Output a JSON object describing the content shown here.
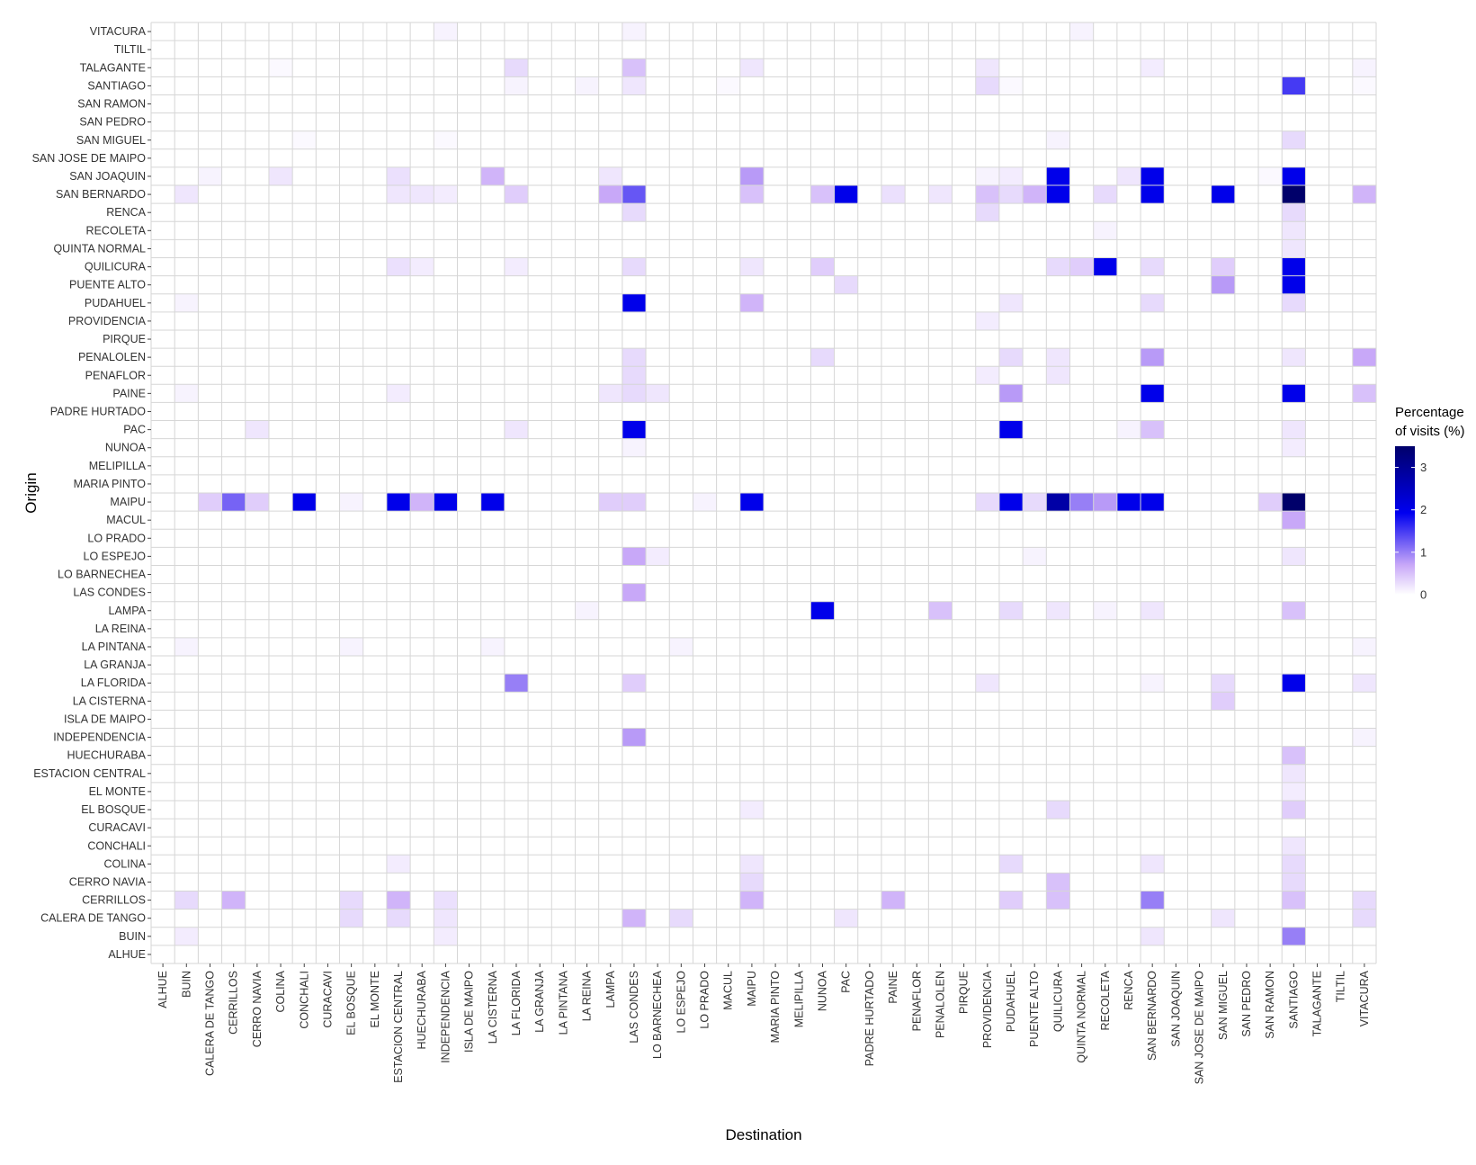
{
  "chart_data": {
    "type": "heatmap",
    "xlabel": "Destination",
    "ylabel": "Origin",
    "x_categories": [
      "ALHUE",
      "BUIN",
      "CALERA DE TANGO",
      "CERRILLOS",
      "CERRO NAVIA",
      "COLINA",
      "CONCHALI",
      "CURACAVI",
      "EL BOSQUE",
      "EL MONTE",
      "ESTACION CENTRAL",
      "HUECHURABA",
      "INDEPENDENCIA",
      "ISLA DE MAIPO",
      "LA CISTERNA",
      "LA FLORIDA",
      "LA GRANJA",
      "LA PINTANA",
      "LA REINA",
      "LAMPA",
      "LAS CONDES",
      "LO BARNECHEA",
      "LO ESPEJO",
      "LO PRADO",
      "MACUL",
      "MAIPU",
      "MARIA PINTO",
      "MELIPILLA",
      "NUNOA",
      "PAC",
      "PADRE HURTADO",
      "PAINE",
      "PENAFLOR",
      "PENALOLEN",
      "PIRQUE",
      "PROVIDENCIA",
      "PUDAHUEL",
      "PUENTE ALTO",
      "QUILICURA",
      "QUINTA NORMAL",
      "RECOLETA",
      "RENCA",
      "SAN BERNARDO",
      "SAN JOAQUIN",
      "SAN JOSE DE MAIPO",
      "SAN MIGUEL",
      "SAN PEDRO",
      "SAN RAMON",
      "SANTIAGO",
      "TALAGANTE",
      "TILTIL",
      "VITACURA"
    ],
    "y_categories": [
      "ALHUE",
      "BUIN",
      "CALERA DE TANGO",
      "CERRILLOS",
      "CERRO NAVIA",
      "COLINA",
      "CONCHALI",
      "CURACAVI",
      "EL BOSQUE",
      "EL MONTE",
      "ESTACION CENTRAL",
      "HUECHURABA",
      "INDEPENDENCIA",
      "ISLA DE MAIPO",
      "LA CISTERNA",
      "LA FLORIDA",
      "LA GRANJA",
      "LA PINTANA",
      "LA REINA",
      "LAMPA",
      "LAS CONDES",
      "LO BARNECHEA",
      "LO ESPEJO",
      "LO PRADO",
      "MACUL",
      "MAIPU",
      "MARIA PINTO",
      "MELIPILLA",
      "NUNOA",
      "PAC",
      "PADRE HURTADO",
      "PAINE",
      "PENAFLOR",
      "PENALOLEN",
      "PIRQUE",
      "PROVIDENCIA",
      "PUDAHUEL",
      "PUENTE ALTO",
      "QUILICURA",
      "QUINTA NORMAL",
      "RECOLETA",
      "RENCA",
      "SAN BERNARDO",
      "SAN JOAQUIN",
      "SAN JOSE DE MAIPO",
      "SAN MIGUEL",
      "SAN PEDRO",
      "SAN RAMON",
      "SANTIAGO",
      "TALAGANTE",
      "TILTIL",
      "VITACURA"
    ],
    "cells": [
      [
        "VITACURA",
        "INDEPENDENCIA",
        0.1
      ],
      [
        "VITACURA",
        "LAS CONDES",
        0.1
      ],
      [
        "VITACURA",
        "QUINTA NORMAL",
        0.1
      ],
      [
        "TALAGANTE",
        "COLINA",
        0.05
      ],
      [
        "TALAGANTE",
        "LA FLORIDA",
        0.3
      ],
      [
        "TALAGANTE",
        "LAS CONDES",
        0.5
      ],
      [
        "TALAGANTE",
        "MAIPU",
        0.2
      ],
      [
        "TALAGANTE",
        "PROVIDENCIA",
        0.2
      ],
      [
        "TALAGANTE",
        "SAN BERNARDO",
        0.15
      ],
      [
        "TALAGANTE",
        "VITACURA",
        0.1
      ],
      [
        "SANTIAGO",
        "LA FLORIDA",
        0.1
      ],
      [
        "SANTIAGO",
        "LA REINA",
        0.1
      ],
      [
        "SANTIAGO",
        "LAS CONDES",
        0.2
      ],
      [
        "SANTIAGO",
        "MACUL",
        0.05
      ],
      [
        "SANTIAGO",
        "PROVIDENCIA",
        0.3
      ],
      [
        "SANTIAGO",
        "PUDAHUEL",
        0.05
      ],
      [
        "SANTIAGO",
        "SANTIAGO",
        1.5
      ],
      [
        "SANTIAGO",
        "VITACURA",
        0.05
      ],
      [
        "SAN MIGUEL",
        "CONCHALI",
        0.05
      ],
      [
        "SAN MIGUEL",
        "INDEPENDENCIA",
        0.05
      ],
      [
        "SAN MIGUEL",
        "QUILICURA",
        0.1
      ],
      [
        "SAN MIGUEL",
        "SANTIAGO",
        0.3
      ],
      [
        "SAN JOAQUIN",
        "CALERA DE TANGO",
        0.1
      ],
      [
        "SAN JOAQUIN",
        "COLINA",
        0.2
      ],
      [
        "SAN JOAQUIN",
        "ESTACION CENTRAL",
        0.25
      ],
      [
        "SAN JOAQUIN",
        "LA CISTERNA",
        0.6
      ],
      [
        "SAN JOAQUIN",
        "LAMPA",
        0.2
      ],
      [
        "SAN JOAQUIN",
        "MAIPU",
        0.8
      ],
      [
        "SAN JOAQUIN",
        "PROVIDENCIA",
        0.1
      ],
      [
        "SAN JOAQUIN",
        "PUDAHUEL",
        0.15
      ],
      [
        "SAN JOAQUIN",
        "QUILICURA",
        2.0
      ],
      [
        "SAN JOAQUIN",
        "RENCA",
        0.2
      ],
      [
        "SAN JOAQUIN",
        "SAN BERNARDO",
        2.0
      ],
      [
        "SAN JOAQUIN",
        "SAN RAMON",
        0.05
      ],
      [
        "SAN JOAQUIN",
        "SANTIAGO",
        2.0
      ],
      [
        "SAN BERNARDO",
        "BUIN",
        0.2
      ],
      [
        "SAN BERNARDO",
        "ESTACION CENTRAL",
        0.2
      ],
      [
        "SAN BERNARDO",
        "HUECHURABA",
        0.2
      ],
      [
        "SAN BERNARDO",
        "INDEPENDENCIA",
        0.15
      ],
      [
        "SAN BERNARDO",
        "LA FLORIDA",
        0.4
      ],
      [
        "SAN BERNARDO",
        "LAMPA",
        0.7
      ],
      [
        "SAN BERNARDO",
        "LAS CONDES",
        1.3
      ],
      [
        "SAN BERNARDO",
        "MAIPU",
        0.5
      ],
      [
        "SAN BERNARDO",
        "NUNOA",
        0.5
      ],
      [
        "SAN BERNARDO",
        "PAC",
        2.0
      ],
      [
        "SAN BERNARDO",
        "PAINE",
        0.25
      ],
      [
        "SAN BERNARDO",
        "PENALOLEN",
        0.2
      ],
      [
        "SAN BERNARDO",
        "PROVIDENCIA",
        0.5
      ],
      [
        "SAN BERNARDO",
        "PUDAHUEL",
        0.3
      ],
      [
        "SAN BERNARDO",
        "PUENTE ALTO",
        0.6
      ],
      [
        "SAN BERNARDO",
        "QUILICURA",
        2.0
      ],
      [
        "SAN BERNARDO",
        "RECOLETA",
        0.3
      ],
      [
        "SAN BERNARDO",
        "SAN BERNARDO",
        2.0
      ],
      [
        "SAN BERNARDO",
        "SAN MIGUEL",
        2.0
      ],
      [
        "SAN BERNARDO",
        "SANTIAGO",
        3.5
      ],
      [
        "SAN BERNARDO",
        "VITACURA",
        0.6
      ],
      [
        "RENCA",
        "LAS CONDES",
        0.3
      ],
      [
        "RENCA",
        "PROVIDENCIA",
        0.3
      ],
      [
        "RENCA",
        "SANTIAGO",
        0.3
      ],
      [
        "RECOLETA",
        "RECOLETA",
        0.1
      ],
      [
        "RECOLETA",
        "SANTIAGO",
        0.2
      ],
      [
        "QUINTA NORMAL",
        "SANTIAGO",
        0.2
      ],
      [
        "QUILICURA",
        "ESTACION CENTRAL",
        0.25
      ],
      [
        "QUILICURA",
        "HUECHURABA",
        0.15
      ],
      [
        "QUILICURA",
        "LA FLORIDA",
        0.15
      ],
      [
        "QUILICURA",
        "LAS CONDES",
        0.3
      ],
      [
        "QUILICURA",
        "MAIPU",
        0.2
      ],
      [
        "QUILICURA",
        "NUNOA",
        0.4
      ],
      [
        "QUILICURA",
        "QUILICURA",
        0.3
      ],
      [
        "QUILICURA",
        "QUINTA NORMAL",
        0.4
      ],
      [
        "QUILICURA",
        "RECOLETA",
        2.0
      ],
      [
        "QUILICURA",
        "SAN BERNARDO",
        0.3
      ],
      [
        "QUILICURA",
        "SAN MIGUEL",
        0.4
      ],
      [
        "QUILICURA",
        "SANTIAGO",
        2.0
      ],
      [
        "PUENTE ALTO",
        "PAC",
        0.3
      ],
      [
        "PUENTE ALTO",
        "SAN MIGUEL",
        0.8
      ],
      [
        "PUENTE ALTO",
        "SANTIAGO",
        2.0
      ],
      [
        "PUDAHUEL",
        "BUIN",
        0.1
      ],
      [
        "PUDAHUEL",
        "LAS CONDES",
        2.0
      ],
      [
        "PUDAHUEL",
        "MAIPU",
        0.6
      ],
      [
        "PUDAHUEL",
        "PUDAHUEL",
        0.2
      ],
      [
        "PUDAHUEL",
        "SAN BERNARDO",
        0.3
      ],
      [
        "PUDAHUEL",
        "SANTIAGO",
        0.3
      ],
      [
        "PROVIDENCIA",
        "PROVIDENCIA",
        0.15
      ],
      [
        "PENALOLEN",
        "LAS CONDES",
        0.3
      ],
      [
        "PENALOLEN",
        "NUNOA",
        0.3
      ],
      [
        "PENALOLEN",
        "PUDAHUEL",
        0.3
      ],
      [
        "PENALOLEN",
        "QUILICURA",
        0.2
      ],
      [
        "PENALOLEN",
        "SAN BERNARDO",
        0.8
      ],
      [
        "PENALOLEN",
        "SANTIAGO",
        0.2
      ],
      [
        "PENALOLEN",
        "VITACURA",
        0.7
      ],
      [
        "PENAFLOR",
        "LAS CONDES",
        0.3
      ],
      [
        "PENAFLOR",
        "PROVIDENCIA",
        0.15
      ],
      [
        "PENAFLOR",
        "QUILICURA",
        0.2
      ],
      [
        "PAINE",
        "BUIN",
        0.1
      ],
      [
        "PAINE",
        "ESTACION CENTRAL",
        0.15
      ],
      [
        "PAINE",
        "LAMPA",
        0.2
      ],
      [
        "PAINE",
        "LAS CONDES",
        0.3
      ],
      [
        "PAINE",
        "LO BARNECHEA",
        0.2
      ],
      [
        "PAINE",
        "PUDAHUEL",
        0.8
      ],
      [
        "PAINE",
        "SAN BERNARDO",
        2.0
      ],
      [
        "PAINE",
        "SANTIAGO",
        2.0
      ],
      [
        "PAINE",
        "VITACURA",
        0.5
      ],
      [
        "PAC",
        "CERRO NAVIA",
        0.2
      ],
      [
        "PAC",
        "LA FLORIDA",
        0.2
      ],
      [
        "PAC",
        "LAS CONDES",
        2.0
      ],
      [
        "PAC",
        "PUDAHUEL",
        2.0
      ],
      [
        "PAC",
        "RENCA",
        0.1
      ],
      [
        "PAC",
        "SAN BERNARDO",
        0.5
      ],
      [
        "PAC",
        "SANTIAGO",
        0.2
      ],
      [
        "NUNOA",
        "LAS CONDES",
        0.1
      ],
      [
        "NUNOA",
        "SANTIAGO",
        0.15
      ],
      [
        "MAIPU",
        "CALERA DE TANGO",
        0.4
      ],
      [
        "MAIPU",
        "CERRILLOS",
        1.2
      ],
      [
        "MAIPU",
        "CERRO NAVIA",
        0.4
      ],
      [
        "MAIPU",
        "CONCHALI",
        2.0
      ],
      [
        "MAIPU",
        "EL BOSQUE",
        0.1
      ],
      [
        "MAIPU",
        "ESTACION CENTRAL",
        2.0
      ],
      [
        "MAIPU",
        "HUECHURABA",
        0.6
      ],
      [
        "MAIPU",
        "INDEPENDENCIA",
        2.0
      ],
      [
        "MAIPU",
        "LA CISTERNA",
        2.0
      ],
      [
        "MAIPU",
        "LAMPA",
        0.4
      ],
      [
        "MAIPU",
        "LAS CONDES",
        0.4
      ],
      [
        "MAIPU",
        "LO PRADO",
        0.1
      ],
      [
        "MAIPU",
        "MAIPU",
        2.0
      ],
      [
        "MAIPU",
        "PROVIDENCIA",
        0.3
      ],
      [
        "MAIPU",
        "PUDAHUEL",
        2.0
      ],
      [
        "MAIPU",
        "PUENTE ALTO",
        0.3
      ],
      [
        "MAIPU",
        "QUILICURA",
        2.8
      ],
      [
        "MAIPU",
        "QUINTA NORMAL",
        1.0
      ],
      [
        "MAIPU",
        "RECOLETA",
        0.8
      ],
      [
        "MAIPU",
        "RENCA",
        2.0
      ],
      [
        "MAIPU",
        "SAN BERNARDO",
        2.0
      ],
      [
        "MAIPU",
        "SAN RAMON",
        0.4
      ],
      [
        "MAIPU",
        "SANTIAGO",
        3.5
      ],
      [
        "MACUL",
        "SANTIAGO",
        0.7
      ],
      [
        "LO ESPEJO",
        "LAS CONDES",
        0.7
      ],
      [
        "LO ESPEJO",
        "LO BARNECHEA",
        0.15
      ],
      [
        "LO ESPEJO",
        "PUENTE ALTO",
        0.1
      ],
      [
        "LO ESPEJO",
        "SANTIAGO",
        0.2
      ],
      [
        "LAS CONDES",
        "LAS CONDES",
        0.7
      ],
      [
        "LAMPA",
        "LA REINA",
        0.1
      ],
      [
        "LAMPA",
        "NUNOA",
        2.0
      ],
      [
        "LAMPA",
        "PENALOLEN",
        0.5
      ],
      [
        "LAMPA",
        "PUDAHUEL",
        0.3
      ],
      [
        "LAMPA",
        "QUILICURA",
        0.2
      ],
      [
        "LAMPA",
        "RECOLETA",
        0.1
      ],
      [
        "LAMPA",
        "SAN BERNARDO",
        0.2
      ],
      [
        "LAMPA",
        "SANTIAGO",
        0.5
      ],
      [
        "LA PINTANA",
        "BUIN",
        0.1
      ],
      [
        "LA PINTANA",
        "EL BOSQUE",
        0.1
      ],
      [
        "LA PINTANA",
        "LA CISTERNA",
        0.1
      ],
      [
        "LA PINTANA",
        "LO ESPEJO",
        0.1
      ],
      [
        "LA PINTANA",
        "VITACURA",
        0.1
      ],
      [
        "LA FLORIDA",
        "LA FLORIDA",
        1.0
      ],
      [
        "LA FLORIDA",
        "LAS CONDES",
        0.4
      ],
      [
        "LA FLORIDA",
        "PROVIDENCIA",
        0.2
      ],
      [
        "LA FLORIDA",
        "SAN BERNARDO",
        0.1
      ],
      [
        "LA FLORIDA",
        "SAN MIGUEL",
        0.3
      ],
      [
        "LA FLORIDA",
        "SANTIAGO",
        2.0
      ],
      [
        "LA FLORIDA",
        "VITACURA",
        0.2
      ],
      [
        "LA CISTERNA",
        "SAN MIGUEL",
        0.4
      ],
      [
        "INDEPENDENCIA",
        "LAS CONDES",
        0.8
      ],
      [
        "INDEPENDENCIA",
        "VITACURA",
        0.1
      ],
      [
        "HUECHURABA",
        "SANTIAGO",
        0.5
      ],
      [
        "ESTACION CENTRAL",
        "SANTIAGO",
        0.2
      ],
      [
        "EL MONTE",
        "SANTIAGO",
        0.15
      ],
      [
        "EL BOSQUE",
        "MAIPU",
        0.15
      ],
      [
        "EL BOSQUE",
        "QUILICURA",
        0.3
      ],
      [
        "EL BOSQUE",
        "SANTIAGO",
        0.4
      ],
      [
        "CONCHALI",
        "SANTIAGO",
        0.2
      ],
      [
        "COLINA",
        "ESTACION CENTRAL",
        0.15
      ],
      [
        "COLINA",
        "MAIPU",
        0.2
      ],
      [
        "COLINA",
        "PUDAHUEL",
        0.3
      ],
      [
        "COLINA",
        "SAN BERNARDO",
        0.2
      ],
      [
        "COLINA",
        "SANTIAGO",
        0.3
      ],
      [
        "CERRO NAVIA",
        "MAIPU",
        0.3
      ],
      [
        "CERRO NAVIA",
        "QUILICURA",
        0.5
      ],
      [
        "CERRO NAVIA",
        "SANTIAGO",
        0.3
      ],
      [
        "CERRILLOS",
        "BUIN",
        0.3
      ],
      [
        "CERRILLOS",
        "CERRILLOS",
        0.6
      ],
      [
        "CERRILLOS",
        "EL BOSQUE",
        0.3
      ],
      [
        "CERRILLOS",
        "ESTACION CENTRAL",
        0.6
      ],
      [
        "CERRILLOS",
        "INDEPENDENCIA",
        0.25
      ],
      [
        "CERRILLOS",
        "MAIPU",
        0.6
      ],
      [
        "CERRILLOS",
        "PAINE",
        0.6
      ],
      [
        "CERRILLOS",
        "PUDAHUEL",
        0.4
      ],
      [
        "CERRILLOS",
        "QUILICURA",
        0.5
      ],
      [
        "CERRILLOS",
        "SAN BERNARDO",
        1.0
      ],
      [
        "CERRILLOS",
        "SANTIAGO",
        0.5
      ],
      [
        "CERRILLOS",
        "VITACURA",
        0.3
      ],
      [
        "CALERA DE TANGO",
        "EL BOSQUE",
        0.3
      ],
      [
        "CALERA DE TANGO",
        "ESTACION CENTRAL",
        0.3
      ],
      [
        "CALERA DE TANGO",
        "INDEPENDENCIA",
        0.2
      ],
      [
        "CALERA DE TANGO",
        "LAS CONDES",
        0.6
      ],
      [
        "CALERA DE TANGO",
        "LO ESPEJO",
        0.3
      ],
      [
        "CALERA DE TANGO",
        "PAC",
        0.2
      ],
      [
        "CALERA DE TANGO",
        "SAN MIGUEL",
        0.2
      ],
      [
        "CALERA DE TANGO",
        "VITACURA",
        0.3
      ],
      [
        "BUIN",
        "BUIN",
        0.15
      ],
      [
        "BUIN",
        "INDEPENDENCIA",
        0.15
      ],
      [
        "BUIN",
        "SAN BERNARDO",
        0.2
      ],
      [
        "BUIN",
        "SANTIAGO",
        1.0
      ]
    ],
    "scale": {
      "min": 0,
      "max": 3.5,
      "colors": [
        "#ffffff",
        "#c8a8f8",
        "#0000f0",
        "#00006a"
      ],
      "stops": [
        0,
        0.2,
        0.55,
        1
      ]
    },
    "legend": {
      "title_lines": [
        "Percentage",
        "of visits (%)"
      ],
      "tick_values": [
        0,
        1,
        2,
        3
      ],
      "tick_labels": [
        "0",
        "1",
        "2",
        "3"
      ],
      "position": "right"
    },
    "grid": true
  }
}
